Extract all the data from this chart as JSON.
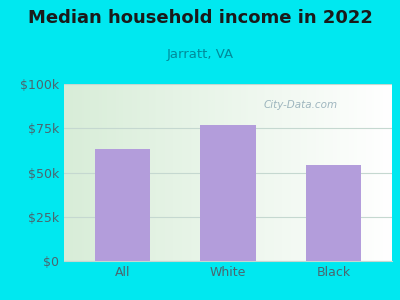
{
  "title": "Median household income in 2022",
  "subtitle": "Jarratt, VA",
  "categories": [
    "All",
    "White",
    "Black"
  ],
  "values": [
    63000,
    77000,
    54000
  ],
  "bar_color": "#b39ddb",
  "background_outer": "#00e8f0",
  "title_color": "#1a1a1a",
  "subtitle_color": "#008b9a",
  "tick_label_color": "#4a6670",
  "grid_color": "#c5d8d0",
  "watermark": "City-Data.com",
  "ylim": [
    0,
    100000
  ],
  "yticks": [
    0,
    25000,
    50000,
    75000,
    100000
  ],
  "ytick_labels": [
    "$0",
    "$25k",
    "$50k",
    "$75k",
    "$100k"
  ],
  "title_fontsize": 13,
  "subtitle_fontsize": 9.5,
  "tick_fontsize": 9,
  "figsize": [
    4.0,
    3.0
  ],
  "dpi": 100
}
